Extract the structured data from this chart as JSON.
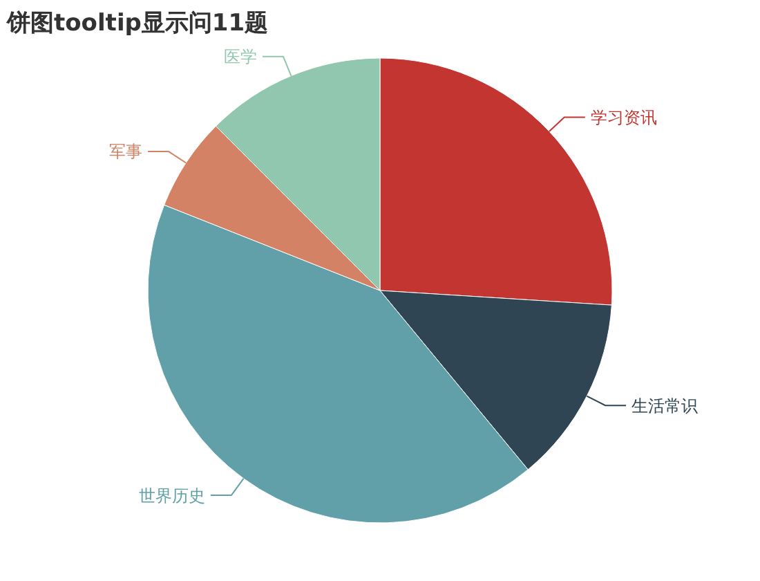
{
  "chart_data": {
    "type": "pie",
    "title": "饼图tooltip显示问11题",
    "categories": [
      "学习资讯",
      "生活常识",
      "世界历史",
      "军事",
      "医学"
    ],
    "values": [
      26,
      13,
      42,
      6.5,
      12.5
    ],
    "colors": [
      "#c23531",
      "#2f4554",
      "#61a0a8",
      "#d48265",
      "#91c7ae"
    ],
    "legend": false
  }
}
